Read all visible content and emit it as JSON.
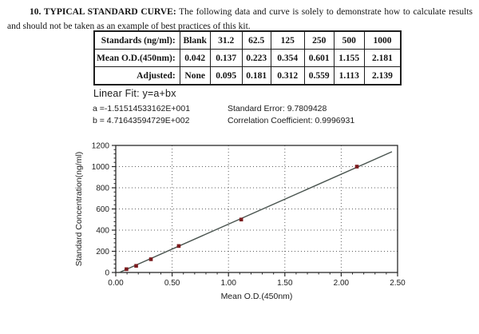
{
  "intro": {
    "heading_bold": "10. TYPICAL STANDARD CURVE:",
    "heading_rest": " The following data and curve is solely to demonstrate how to calculate results and should not be taken as an example of best practices of this kit."
  },
  "table": {
    "rows": [
      {
        "label": "Standards (ng/ml):",
        "values": [
          "Blank",
          "31.2",
          "62.5",
          "125",
          "250",
          "500",
          "1000"
        ]
      },
      {
        "label": "Mean O.D.(450nm):",
        "values": [
          "0.042",
          "0.137",
          "0.223",
          "0.354",
          "0.601",
          "1.155",
          "2.181"
        ]
      },
      {
        "label": "Adjusted:",
        "values": [
          "None",
          "0.095",
          "0.181",
          "0.312",
          "0.559",
          "1.113",
          "2.139"
        ]
      }
    ]
  },
  "fit": {
    "title": "Linear Fit: y=a+bx",
    "a_label": "a =-1.51514533162E+001",
    "b_label": "b = 4.71643594729E+002",
    "std_error": "Standard Error: 9.7809428",
    "correlation": "Correlation Coefficient: 0.9996931"
  },
  "chart_data": {
    "type": "scatter",
    "title": "",
    "xlabel": "Mean O.D.(450nm)",
    "ylabel": "Standard Concentration(ng/ml)",
    "xlim": [
      0,
      2.5
    ],
    "ylim": [
      0,
      1200
    ],
    "x_major_step": 0.5,
    "x_minor_step": 0.1,
    "y_major_step": 200,
    "y_minor_step": 40,
    "x_tick_labels": [
      "0.00",
      "0.50",
      "1.00",
      "1.50",
      "2.00",
      "2.50"
    ],
    "y_tick_labels": [
      "0",
      "200",
      "400",
      "600",
      "800",
      "1000",
      "1200"
    ],
    "grid": "dotted",
    "points": [
      {
        "x": 0.095,
        "y": 31.2
      },
      {
        "x": 0.181,
        "y": 62.5
      },
      {
        "x": 0.312,
        "y": 125
      },
      {
        "x": 0.559,
        "y": 250
      },
      {
        "x": 1.113,
        "y": 500
      },
      {
        "x": 2.139,
        "y": 1000
      }
    ],
    "fit_line": {
      "a": -15.1514533162,
      "b": 471.643594729,
      "x_end": 2.45
    },
    "colors": {
      "marker": "#7b1b1e",
      "line": "#49544f",
      "grid": "#5e5e5e",
      "frame": "#2a2a2a",
      "text": "#1c1c1c"
    }
  }
}
